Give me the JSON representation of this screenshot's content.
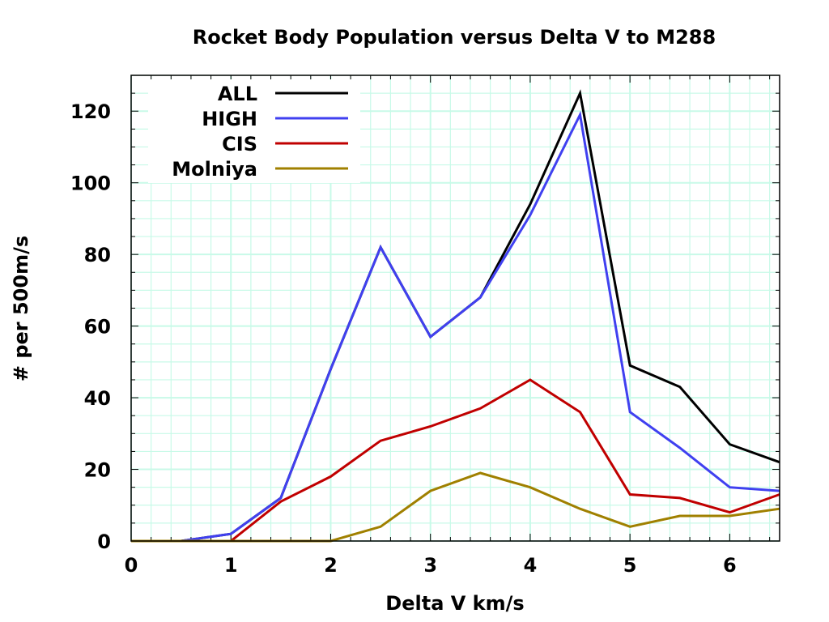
{
  "chart_data": {
    "type": "line",
    "title": "Rocket Body Population versus Delta V to M288",
    "xlabel": "Delta V km/s",
    "ylabel": "# per 500m/s",
    "xlim": [
      0,
      6.5
    ],
    "ylim": [
      0,
      130
    ],
    "xticks": [
      0,
      1,
      2,
      3,
      4,
      5,
      6
    ],
    "xtick_labels": [
      "0",
      "1",
      "2",
      "3",
      "4",
      "5",
      "6"
    ],
    "yticks": [
      0,
      20,
      40,
      60,
      80,
      100,
      120
    ],
    "ytick_labels": [
      "0",
      "20",
      "40",
      "60",
      "80",
      "100",
      "120"
    ],
    "x_minor_step": 0.2,
    "y_minor_step": 5,
    "grid": true,
    "grid_color": "#c8fae8",
    "legend_position": "top-left",
    "x": [
      0,
      0.5,
      1.0,
      1.5,
      2.0,
      2.5,
      3.0,
      3.5,
      4.0,
      4.5,
      5.0,
      5.5,
      6.0,
      6.5
    ],
    "series": [
      {
        "name": "ALL",
        "color": "#000000",
        "values": [
          0,
          0,
          2,
          12,
          48,
          82,
          57,
          68,
          94,
          125,
          49,
          43,
          27,
          22
        ]
      },
      {
        "name": "HIGH",
        "color": "#4040f0",
        "values": [
          0,
          0,
          2,
          12,
          48,
          82,
          57,
          68,
          91,
          119,
          36,
          26,
          15,
          14
        ]
      },
      {
        "name": "CIS",
        "color": "#c00000",
        "values": [
          0,
          0,
          0,
          11,
          18,
          28,
          32,
          37,
          45,
          36,
          13,
          12,
          8,
          13
        ]
      },
      {
        "name": "Molniya",
        "color": "#a08000",
        "values": [
          0,
          0,
          0,
          0,
          0,
          4,
          14,
          19,
          15,
          9,
          4,
          7,
          7,
          9
        ]
      }
    ]
  }
}
